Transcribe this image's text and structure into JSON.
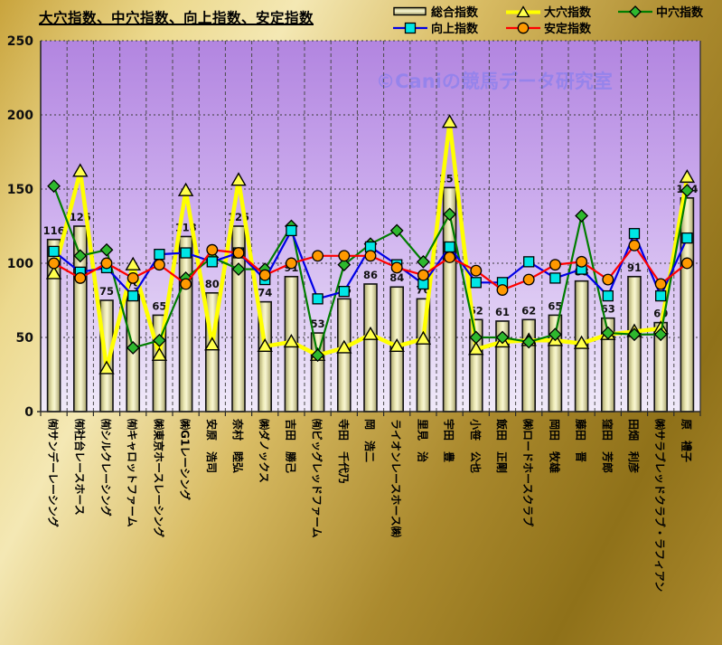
{
  "page": {
    "title": "大穴指数、中穴指数、向上指数、安定指数",
    "watermark": "©Caniの競馬データ研究室"
  },
  "legend": {
    "position": "top-right",
    "items": [
      {
        "label": "総合指数",
        "marker": "bar-swatch"
      },
      {
        "label": "大穴指数",
        "marker": "triangle"
      },
      {
        "label": "中穴指数",
        "marker": "diamond"
      },
      {
        "label": "向上指数",
        "marker": "square"
      },
      {
        "label": "安定指数",
        "marker": "circle"
      }
    ]
  },
  "colors": {
    "bar_fill_light": "#f8f6d2",
    "bar_fill_dark": "#a9a46b",
    "bar_outline": "#111111",
    "ooana_line": "#ffff00",
    "ooana_marker": "#ffff4d",
    "chuuana_line": "#007d00",
    "chuuana_marker": "#2eb82e",
    "koujou_line": "#0000e6",
    "koujou_marker": "#00e6e6",
    "antei_line": "#ff0000",
    "antei_marker": "#ff9900",
    "plot_top": "#b285e0",
    "plot_bottom": "#f0eaf9",
    "watermark": "#7b7bf2"
  },
  "chart_data": {
    "type": "combo-bar-line",
    "title": "大穴指数、中穴指数、向上指数、安定指数",
    "xlabel": "",
    "ylabel": "",
    "ylim": [
      0,
      250
    ],
    "yticks": [
      0,
      50,
      100,
      150,
      200,
      250
    ],
    "grid": true,
    "legend_position": "top-right",
    "categories": [
      "㈲サンデーレーシング",
      "㈲社台レースホース",
      "㈲シルクレーシング",
      "㈲キャロットファーム",
      "㈱東京ホースレーシング",
      "㈱G1レーシング",
      "安原　浩司",
      "奈村　睦弘",
      "㈱ダノックス",
      "吉田　勝己",
      "㈲ビッグレッドファーム",
      "寺田　千代乃",
      "岡　浩二",
      "ライオンレースホース㈱",
      "里見　治",
      "宇田　豊",
      "小笹　公也",
      "飯田　正剛",
      "㈱ロードホースクラブ",
      "岡田　牧雄",
      "藤田　晋",
      "窪田　芳郎",
      "田畑　利彦",
      "㈱サラブレッドクラブ・ラフィアン",
      "原　禮子"
    ],
    "bar_series": {
      "name": "総合指数",
      "values": [
        116,
        125,
        75,
        79,
        65,
        118,
        80,
        125,
        74,
        91,
        53,
        76,
        86,
        84,
        76,
        151,
        62,
        61,
        62,
        65,
        88,
        63,
        91,
        60,
        144
      ],
      "labels_shown": true
    },
    "series": [
      {
        "name": "大穴指数",
        "type": "line",
        "marker": "triangle",
        "values": [
          93,
          162,
          29,
          99,
          38,
          149,
          45,
          156,
          44,
          47,
          38,
          43,
          52,
          44,
          49,
          195,
          42,
          47,
          48,
          48,
          46,
          52,
          54,
          56,
          158
        ]
      },
      {
        "name": "中穴指数",
        "type": "line",
        "marker": "diamond",
        "values": [
          152,
          105,
          109,
          43,
          48,
          90,
          104,
          96,
          96,
          125,
          38,
          99,
          113,
          122,
          101,
          133,
          50,
          50,
          47,
          52,
          132,
          53,
          52,
          52,
          149
        ]
      },
      {
        "name": "向上指数",
        "type": "line",
        "marker": "square",
        "values": [
          108,
          94,
          97,
          78,
          106,
          107,
          101,
          107,
          89,
          122,
          76,
          81,
          111,
          99,
          86,
          111,
          87,
          87,
          101,
          90,
          96,
          78,
          120,
          78,
          117
        ]
      },
      {
        "name": "安定指数",
        "type": "line",
        "marker": "circle",
        "values": [
          100,
          90,
          100,
          90,
          99,
          86,
          109,
          107,
          92,
          100,
          105,
          105,
          105,
          97,
          92,
          104,
          95,
          82,
          89,
          99,
          101,
          89,
          112,
          86,
          100
        ]
      }
    ]
  }
}
